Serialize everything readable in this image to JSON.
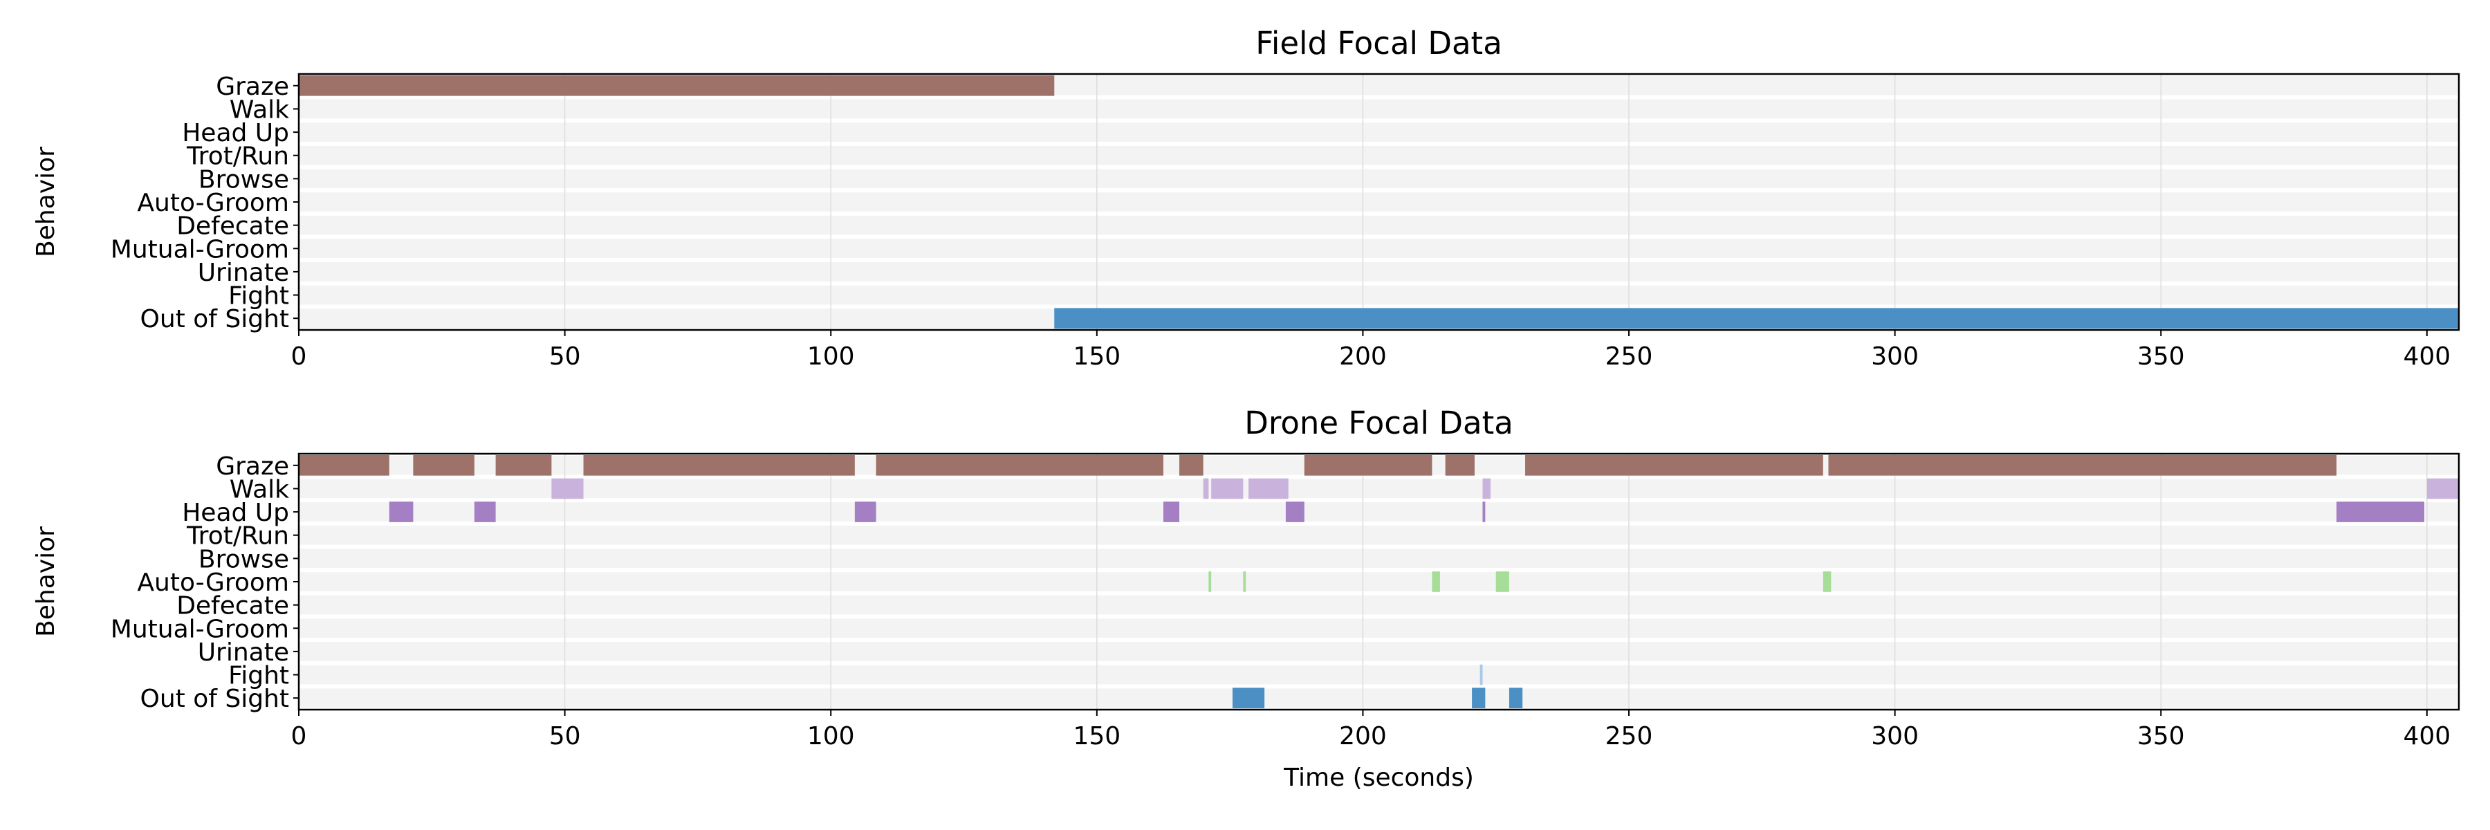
{
  "behaviors": [
    "Graze",
    "Walk",
    "Head Up",
    "Trot/Run",
    "Browse",
    "Auto-Groom",
    "Defecate",
    "Mutual-Groom",
    "Urinate",
    "Fight",
    "Out of Sight"
  ],
  "colors": {
    "Graze": "#9e7268",
    "Walk": "#c9b3dc",
    "Head Up": "#a57fc4",
    "Auto-Groom": "#a6de98",
    "Fight": "#a9c9e4",
    "Out of Sight": "#4a90c4",
    "row_background": "#f3f3f3",
    "grid": "#dddddd"
  },
  "chart_data": [
    {
      "type": "gantt",
      "title": "Field Focal Data",
      "ylabel": "Behavior",
      "xlabel": "",
      "xlim": [
        0,
        406
      ],
      "xticks": [
        0,
        50,
        100,
        150,
        200,
        250,
        300,
        350,
        400
      ],
      "grid": "vertical",
      "segments": [
        {
          "behavior": "Graze",
          "start": 0,
          "end": 142
        },
        {
          "behavior": "Out of Sight",
          "start": 142,
          "end": 406
        }
      ]
    },
    {
      "type": "gantt",
      "title": "Drone Focal Data",
      "ylabel": "Behavior",
      "xlabel": "Time (seconds)",
      "xlim": [
        0,
        406
      ],
      "xticks": [
        0,
        50,
        100,
        150,
        200,
        250,
        300,
        350,
        400
      ],
      "grid": "vertical",
      "segments": [
        {
          "behavior": "Graze",
          "start": 0,
          "end": 17
        },
        {
          "behavior": "Graze",
          "start": 21.5,
          "end": 33
        },
        {
          "behavior": "Graze",
          "start": 37,
          "end": 47.5
        },
        {
          "behavior": "Graze",
          "start": 53.5,
          "end": 104.5
        },
        {
          "behavior": "Graze",
          "start": 108.5,
          "end": 162.5
        },
        {
          "behavior": "Graze",
          "start": 165.5,
          "end": 170
        },
        {
          "behavior": "Graze",
          "start": 189,
          "end": 213
        },
        {
          "behavior": "Graze",
          "start": 215.5,
          "end": 221
        },
        {
          "behavior": "Graze",
          "start": 230.5,
          "end": 286.5
        },
        {
          "behavior": "Graze",
          "start": 287.5,
          "end": 383
        },
        {
          "behavior": "Walk",
          "start": 47.5,
          "end": 53.5
        },
        {
          "behavior": "Walk",
          "start": 170,
          "end": 171
        },
        {
          "behavior": "Walk",
          "start": 171.5,
          "end": 177.5
        },
        {
          "behavior": "Walk",
          "start": 178.5,
          "end": 186
        },
        {
          "behavior": "Walk",
          "start": 222.5,
          "end": 224
        },
        {
          "behavior": "Walk",
          "start": 400,
          "end": 406
        },
        {
          "behavior": "Head Up",
          "start": 17,
          "end": 21.5
        },
        {
          "behavior": "Head Up",
          "start": 33,
          "end": 37
        },
        {
          "behavior": "Head Up",
          "start": 104.5,
          "end": 108.5
        },
        {
          "behavior": "Head Up",
          "start": 162.5,
          "end": 165.5
        },
        {
          "behavior": "Head Up",
          "start": 185.5,
          "end": 189
        },
        {
          "behavior": "Head Up",
          "start": 222.5,
          "end": 223
        },
        {
          "behavior": "Head Up",
          "start": 383,
          "end": 399.5
        },
        {
          "behavior": "Auto-Groom",
          "start": 171,
          "end": 171.5
        },
        {
          "behavior": "Auto-Groom",
          "start": 177.5,
          "end": 178
        },
        {
          "behavior": "Auto-Groom",
          "start": 213,
          "end": 214.5
        },
        {
          "behavior": "Auto-Groom",
          "start": 225,
          "end": 227.5
        },
        {
          "behavior": "Auto-Groom",
          "start": 286.5,
          "end": 288
        },
        {
          "behavior": "Fight",
          "start": 222,
          "end": 222.5
        },
        {
          "behavior": "Out of Sight",
          "start": 175.5,
          "end": 181.5
        },
        {
          "behavior": "Out of Sight",
          "start": 220.5,
          "end": 223
        },
        {
          "behavior": "Out of Sight",
          "start": 227.5,
          "end": 230
        }
      ]
    }
  ]
}
